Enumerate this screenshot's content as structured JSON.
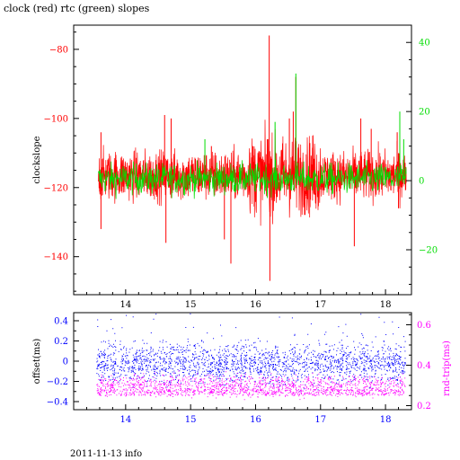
{
  "title": "clock (red) rtc (green) slopes",
  "footer": "2011-11-13 info",
  "colors": {
    "red": "#ff0000",
    "green": "#00dd00",
    "blue": "#0000ff",
    "magenta": "#ff00ff",
    "axis": "#000000"
  },
  "chart_data": [
    {
      "type": "line",
      "title": "clock (red) rtc (green) slopes",
      "ylabel": "clockslope",
      "xlim": [
        13.2,
        18.4
      ],
      "xticks": [
        14,
        15,
        16,
        17,
        18
      ],
      "ylim": [
        -151,
        -73
      ],
      "yticks": [
        -80,
        -100,
        -120,
        -140
      ],
      "y2lim": [
        -33,
        45
      ],
      "y2ticks": [
        40,
        20,
        0,
        -20
      ],
      "x_range_data": [
        13.58,
        18.32
      ],
      "series": [
        {
          "name": "clock",
          "axis": "left",
          "color": "#ff0000",
          "baseline": -116.5,
          "spikes": [
            {
              "x": 13.62,
              "y": -104
            },
            {
              "x": 13.62,
              "y": -132
            },
            {
              "x": 14.6,
              "y": -99
            },
            {
              "x": 14.7,
              "y": -100
            },
            {
              "x": 14.62,
              "y": -136
            },
            {
              "x": 15.32,
              "y": -108
            },
            {
              "x": 15.52,
              "y": -135
            },
            {
              "x": 15.62,
              "y": -142
            },
            {
              "x": 15.96,
              "y": -108
            },
            {
              "x": 16.21,
              "y": -76
            },
            {
              "x": 16.22,
              "y": -147
            },
            {
              "x": 16.18,
              "y": -106
            },
            {
              "x": 16.52,
              "y": -100
            },
            {
              "x": 16.58,
              "y": -98
            },
            {
              "x": 16.62,
              "y": -88
            },
            {
              "x": 16.88,
              "y": -105
            },
            {
              "x": 17.52,
              "y": -137
            },
            {
              "x": 17.62,
              "y": -100
            },
            {
              "x": 17.78,
              "y": -103
            },
            {
              "x": 18.18,
              "y": -104
            },
            {
              "x": 18.2,
              "y": -126
            }
          ]
        },
        {
          "name": "rtc",
          "axis": "right",
          "color": "#00dd00",
          "baseline": 0.5,
          "spikes": [
            {
              "x": 16.62,
              "y": 31
            },
            {
              "x": 16.3,
              "y": 17
            },
            {
              "x": 18.22,
              "y": 20
            },
            {
              "x": 18.28,
              "y": 12
            },
            {
              "x": 15.22,
              "y": 12
            }
          ]
        }
      ]
    },
    {
      "type": "scatter",
      "ylabel": "offset(ms)",
      "y2label": "rnd-trip(ms)",
      "xlim": [
        13.2,
        18.4
      ],
      "xticks": [
        14,
        15,
        16,
        17,
        18
      ],
      "ylim": [
        -0.48,
        0.48
      ],
      "yticks": [
        0.4,
        0.2,
        0,
        -0.2,
        -0.4
      ],
      "y2lim": [
        0.18,
        0.66
      ],
      "y2ticks": [
        0.6,
        0.4,
        0.2
      ],
      "x_range_data": [
        13.55,
        18.3
      ],
      "series": [
        {
          "name": "offset",
          "axis": "left",
          "color": "#0000ff",
          "center": -0.02,
          "spread": 0.1,
          "outlier_max": 0.47
        },
        {
          "name": "rnd-trip",
          "axis": "right",
          "color": "#ff00ff",
          "center": 0.3,
          "spread": 0.025,
          "band_low": 0.25
        }
      ]
    }
  ]
}
